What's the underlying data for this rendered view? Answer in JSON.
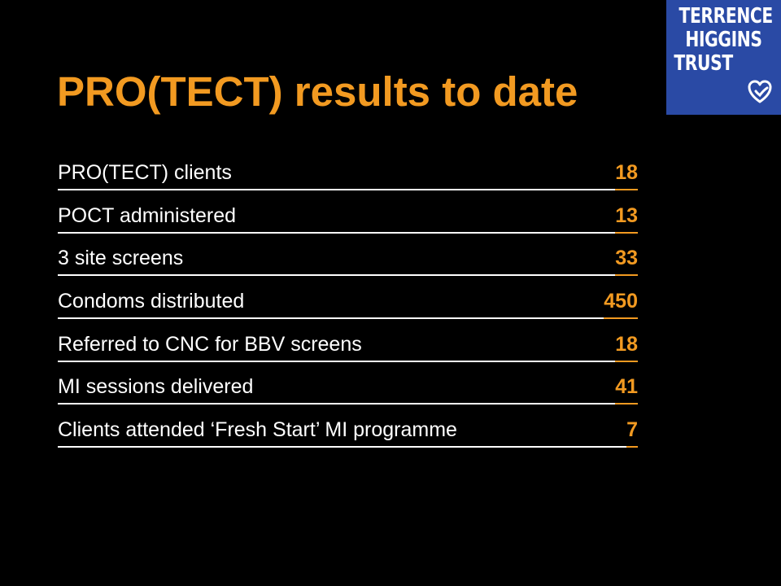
{
  "logo": {
    "lines": [
      "TERRENCE",
      "HIGGINS",
      "TRUST"
    ],
    "icon": "heart-icon",
    "background": "#2a4aa5"
  },
  "title": "PRO(TECT) results to date",
  "colors": {
    "accent": "#f29a21",
    "text": "#ffffff",
    "background": "#000000"
  },
  "rows": [
    {
      "label": "PRO(TECT) clients",
      "value": "18"
    },
    {
      "label": "POCT administered",
      "value": "13"
    },
    {
      "label": "3 site screens",
      "value": "33"
    },
    {
      "label": "Condoms distributed",
      "value": "450"
    },
    {
      "label": "Referred to CNC for BBV screens",
      "value": "18"
    },
    {
      "label": "MI sessions delivered",
      "value": "41"
    },
    {
      "label": "Clients attended ‘Fresh Start’ MI programme",
      "value": "7"
    }
  ]
}
